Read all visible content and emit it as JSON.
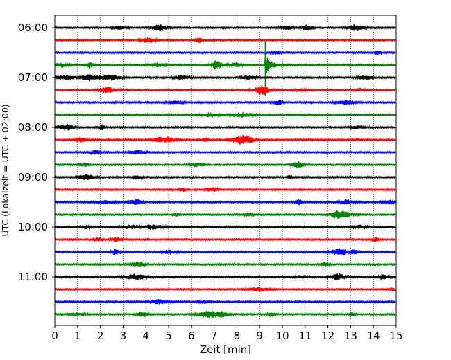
{
  "chart_data": {
    "type": "line",
    "title": "",
    "xlabel": "Zeit  [min]",
    "ylabel": "UTC (Lokalzeit = UTC + 02:00)",
    "xlim": [
      0,
      15
    ],
    "x_ticks": [
      "0",
      "1",
      "2",
      "3",
      "4",
      "5",
      "6",
      "7",
      "8",
      "9",
      "10",
      "11",
      "12",
      "13",
      "14",
      "15"
    ],
    "y_ticks": [
      "06:00",
      "07:00",
      "08:00",
      "09:00",
      "10:00",
      "11:00"
    ],
    "grid": "vertical dotted",
    "trace_colors": [
      "#000000",
      "#ff0000",
      "#0000ff",
      "#008000"
    ],
    "traces_start_utc": "06:00",
    "trace_interval_min": 15,
    "trace_count": 24,
    "event": {
      "trace_index": 3,
      "time_min": 9.25
    }
  }
}
